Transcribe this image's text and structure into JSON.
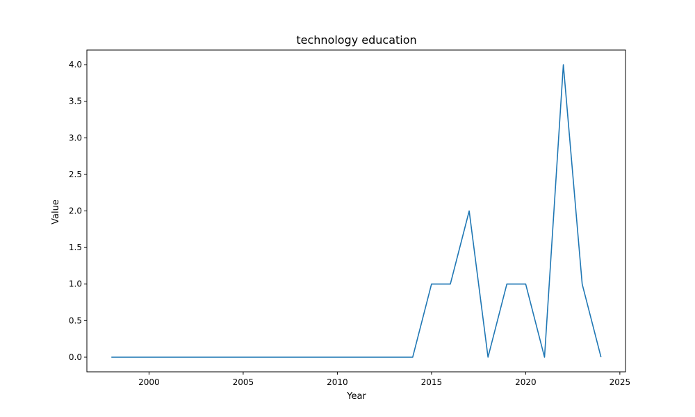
{
  "chart_data": {
    "type": "line",
    "title": "technology education",
    "xlabel": "Year",
    "ylabel": "Value",
    "x": [
      1998,
      1999,
      2000,
      2001,
      2002,
      2003,
      2004,
      2005,
      2006,
      2007,
      2008,
      2009,
      2010,
      2011,
      2012,
      2013,
      2014,
      2015,
      2016,
      2017,
      2018,
      2019,
      2020,
      2021,
      2022,
      2023,
      2024
    ],
    "series": [
      {
        "values": [
          0,
          0,
          0,
          0,
          0,
          0,
          0,
          0,
          0,
          0,
          0,
          0,
          0,
          0,
          0,
          0,
          0,
          1,
          1,
          2,
          0,
          1,
          1,
          0,
          4,
          1,
          0
        ]
      }
    ],
    "xlim": [
      1996.7,
      2025.3
    ],
    "ylim": [
      -0.2,
      4.2
    ],
    "xticks": [
      "2000",
      "2005",
      "2010",
      "2015",
      "2020",
      "2025"
    ],
    "yticks": [
      "0.0",
      "0.5",
      "1.0",
      "1.5",
      "2.0",
      "2.5",
      "3.0",
      "3.5",
      "4.0"
    ],
    "line_color": "#1f77b4",
    "grid": false,
    "legend": "none"
  }
}
